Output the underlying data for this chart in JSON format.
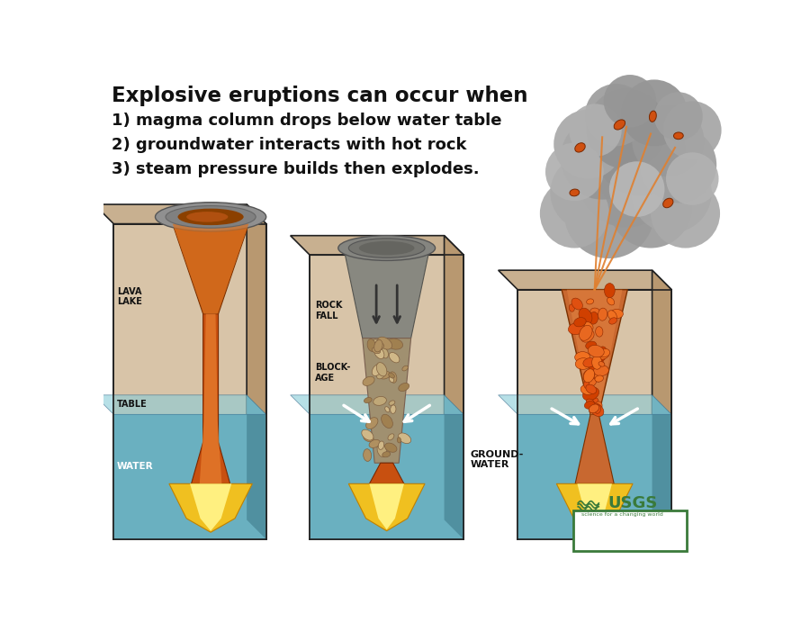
{
  "title": "Explosive eruptions can occur when",
  "line1": "1) magma column drops below water table",
  "line2": "2) groundwater interacts with hot rock",
  "line3": "3) steam pressure builds then explodes.",
  "bg_color": "#ffffff",
  "text_color": "#111111",
  "sand_face": "#d8c4a8",
  "sand_top": "#c8b090",
  "sand_side": "#b89870",
  "water_front": "#6ab0c0",
  "water_side": "#5090a0",
  "water_surface": "#88ccd8",
  "lava_dark": "#a03000",
  "lava_mid": "#d05010",
  "lava_bright": "#e87820",
  "lava_yellow": "#f8d030",
  "lava_hot": "#fff080",
  "gray_funnel": "#888880",
  "gray_dark": "#606060",
  "gray_debris": "#9a9080",
  "smoke_base": "#aaaaaa",
  "smoke_light": "#cccccc",
  "smoke_dark": "#909090",
  "ejecta_col": "#e06010",
  "ejecta_line": "#e08030",
  "usgs_green": "#3a7a3a",
  "outline": "#222222"
}
